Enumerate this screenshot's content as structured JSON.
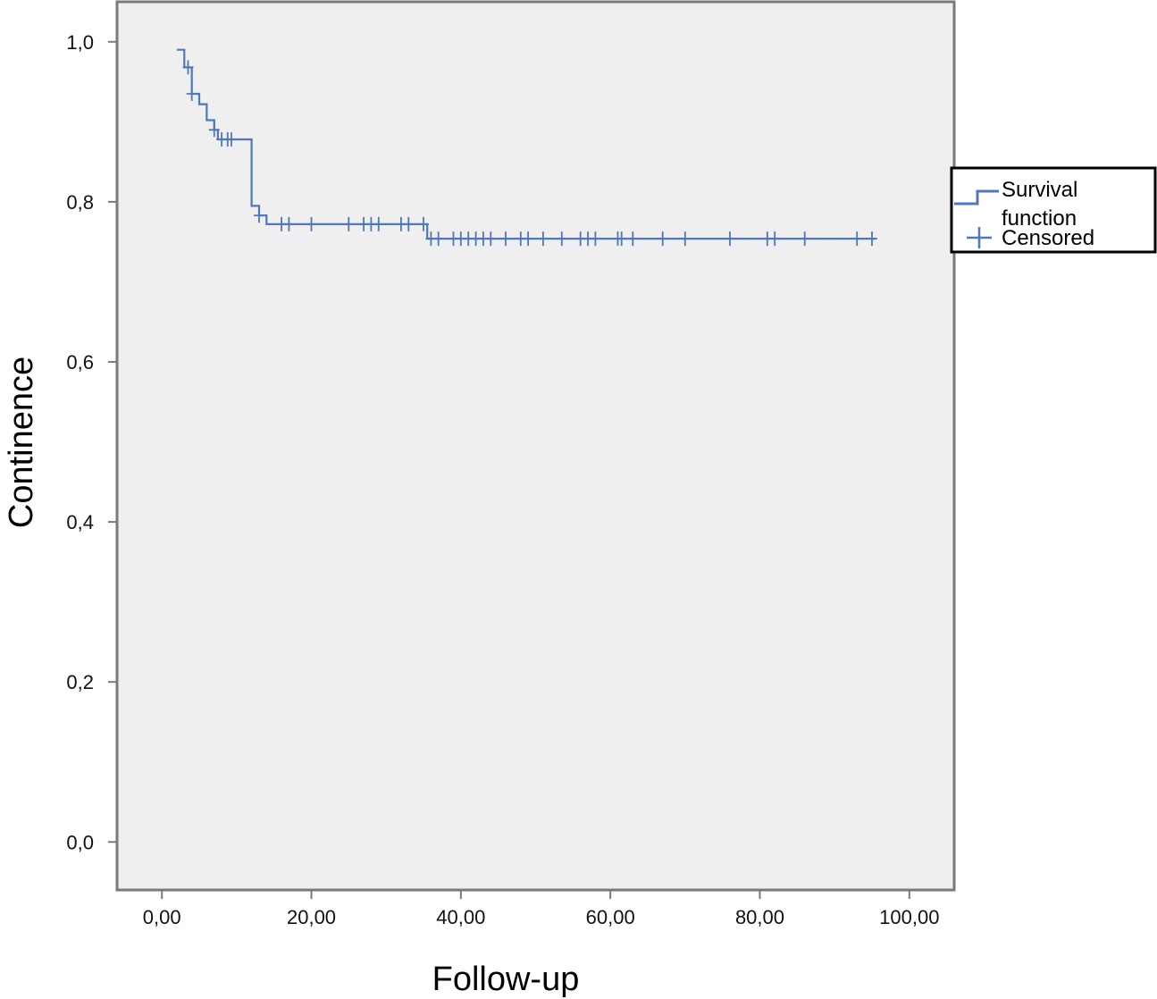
{
  "chart_data": {
    "type": "line",
    "title": "",
    "xlabel": "Follow-up",
    "ylabel": "Continence",
    "xlim": [
      -6,
      106
    ],
    "ylim": [
      -0.06,
      1.05
    ],
    "x_ticks": [
      0,
      20,
      40,
      60,
      80,
      100
    ],
    "x_tick_labels": [
      "0,00",
      "20,00",
      "40,00",
      "60,00",
      "80,00",
      "100,00"
    ],
    "y_ticks": [
      0,
      0.2,
      0.4,
      0.6,
      0.8,
      1.0
    ],
    "y_tick_labels": [
      "0,0",
      "0,2",
      "0,4",
      "0,6",
      "0,8",
      "1,0"
    ],
    "grid": false,
    "legend_position": "right",
    "legend": {
      "survival_label_line1": "Survival",
      "survival_label_line2": "function",
      "censored_label": "Censored"
    },
    "colors": {
      "series": "#4f78b8",
      "plot_background": "#efefef",
      "frame": "#7a7a7a"
    },
    "series": [
      {
        "kind": "survival-step",
        "steps": [
          [
            2.0,
            0.99
          ],
          [
            3.0,
            0.968
          ],
          [
            4.0,
            0.935
          ],
          [
            5.0,
            0.922
          ],
          [
            6.0,
            0.902
          ],
          [
            7.0,
            0.89
          ],
          [
            7.5,
            0.878
          ],
          [
            12.0,
            0.795
          ],
          [
            13.0,
            0.783
          ],
          [
            14.0,
            0.772
          ],
          [
            35.5,
            0.754
          ],
          [
            95.5,
            0.754
          ]
        ],
        "censored_x": [
          3.5,
          4.0,
          7.0,
          8.0,
          8.8,
          9.3,
          13.0,
          16.0,
          17.0,
          20.0,
          25.0,
          27.0,
          28.0,
          29.0,
          32.0,
          33.0,
          35.0,
          36.0,
          37.0,
          39.0,
          40.0,
          41.0,
          42.0,
          43.0,
          44.0,
          46.0,
          48.0,
          49.0,
          51.0,
          53.5,
          56.0,
          57.0,
          58.0,
          61.0,
          61.5,
          63.0,
          67.0,
          70.0,
          76.0,
          81.0,
          82.0,
          86.0,
          93.0,
          95.0
        ]
      }
    ]
  }
}
